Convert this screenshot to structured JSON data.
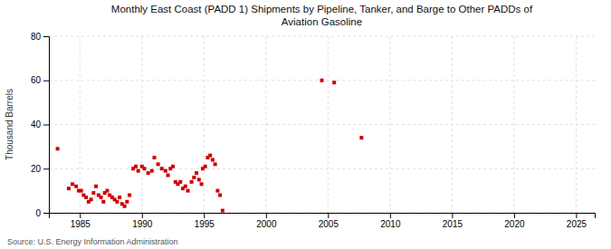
{
  "chart_data": {
    "type": "scatter",
    "title": "Monthly East Coast (PADD 1) Shipments by Pipeline, Tanker, and Barge to Other PADDs of\nAviation Gasoline",
    "ylabel": "Thousand Barrels",
    "annotations": [
      "Source: U.S. Energy Information Administration"
    ],
    "color": "#cc0000",
    "marker": "square",
    "grid": true,
    "xlim": [
      1982.5,
      2026.5
    ],
    "xticks": [
      1985,
      1990,
      1995,
      2000,
      2005,
      2010,
      2015,
      2020,
      2025
    ],
    "ylim": [
      0,
      80
    ],
    "yticks": [
      0,
      20,
      40,
      60,
      80
    ],
    "x": [
      1983.2,
      1984.1,
      1984.4,
      1984.7,
      1984.9,
      1985.1,
      1985.3,
      1985.5,
      1985.7,
      1985.9,
      1986.1,
      1986.3,
      1986.5,
      1986.7,
      1986.9,
      1987.0,
      1987.2,
      1987.4,
      1987.6,
      1987.8,
      1988.0,
      1988.2,
      1988.4,
      1988.6,
      1988.8,
      1989.0,
      1989.3,
      1989.5,
      1989.7,
      1990.0,
      1990.2,
      1990.5,
      1990.8,
      1991.0,
      1991.3,
      1991.6,
      1991.9,
      1992.1,
      1992.3,
      1992.5,
      1992.7,
      1992.9,
      1993.1,
      1993.3,
      1993.5,
      1993.7,
      1994.0,
      1994.2,
      1994.4,
      1994.6,
      1994.8,
      1994.9,
      1995.1,
      1995.3,
      1995.5,
      1995.7,
      1995.9,
      1996.1,
      1996.3,
      1996.5,
      2004.5,
      2005.5,
      2007.7
    ],
    "values": [
      29,
      11,
      13,
      12,
      10,
      10,
      8,
      7,
      5,
      6,
      9,
      12,
      8,
      7,
      5,
      9,
      10,
      8,
      7,
      6,
      5,
      7,
      4,
      3,
      5,
      8,
      20,
      21,
      19,
      21,
      20,
      18,
      19,
      25,
      22,
      20,
      19,
      17,
      20,
      21,
      14,
      13,
      14,
      11,
      12,
      10,
      14,
      16,
      18,
      15,
      13,
      20,
      21,
      25,
      26,
      24,
      22,
      10,
      8,
      1,
      60,
      59,
      34
    ]
  }
}
